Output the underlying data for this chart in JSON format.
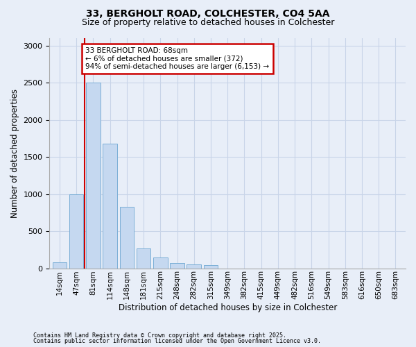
{
  "title_line1": "33, BERGHOLT ROAD, COLCHESTER, CO4 5AA",
  "title_line2": "Size of property relative to detached houses in Colchester",
  "xlabel": "Distribution of detached houses by size in Colchester",
  "ylabel": "Number of detached properties",
  "footnote1": "Contains HM Land Registry data © Crown copyright and database right 2025.",
  "footnote2": "Contains public sector information licensed under the Open Government Licence v3.0.",
  "bar_labels": [
    "14sqm",
    "47sqm",
    "81sqm",
    "114sqm",
    "148sqm",
    "181sqm",
    "215sqm",
    "248sqm",
    "282sqm",
    "315sqm",
    "349sqm",
    "382sqm",
    "415sqm",
    "449sqm",
    "482sqm",
    "516sqm",
    "549sqm",
    "583sqm",
    "616sqm",
    "650sqm",
    "683sqm"
  ],
  "bar_values": [
    80,
    1000,
    2500,
    1680,
    830,
    270,
    145,
    75,
    55,
    40,
    0,
    0,
    0,
    0,
    0,
    0,
    0,
    0,
    0,
    0,
    0
  ],
  "bar_color": "#c5d8f0",
  "bar_edge_color": "#7aaed6",
  "property_line_x": 1,
  "annotation_text": "33 BERGHOLT ROAD: 68sqm\n← 6% of detached houses are smaller (372)\n94% of semi-detached houses are larger (6,153) →",
  "annotation_box_color": "#ffffff",
  "annotation_box_edge_color": "#cc0000",
  "property_line_color": "#cc0000",
  "ylim": [
    0,
    3100
  ],
  "yticks": [
    0,
    500,
    1000,
    1500,
    2000,
    2500,
    3000
  ],
  "grid_color": "#c8d4e8",
  "bg_color": "#e8eef8",
  "plot_bg_color": "#e8eef8",
  "title_fontsize": 10,
  "subtitle_fontsize": 9
}
